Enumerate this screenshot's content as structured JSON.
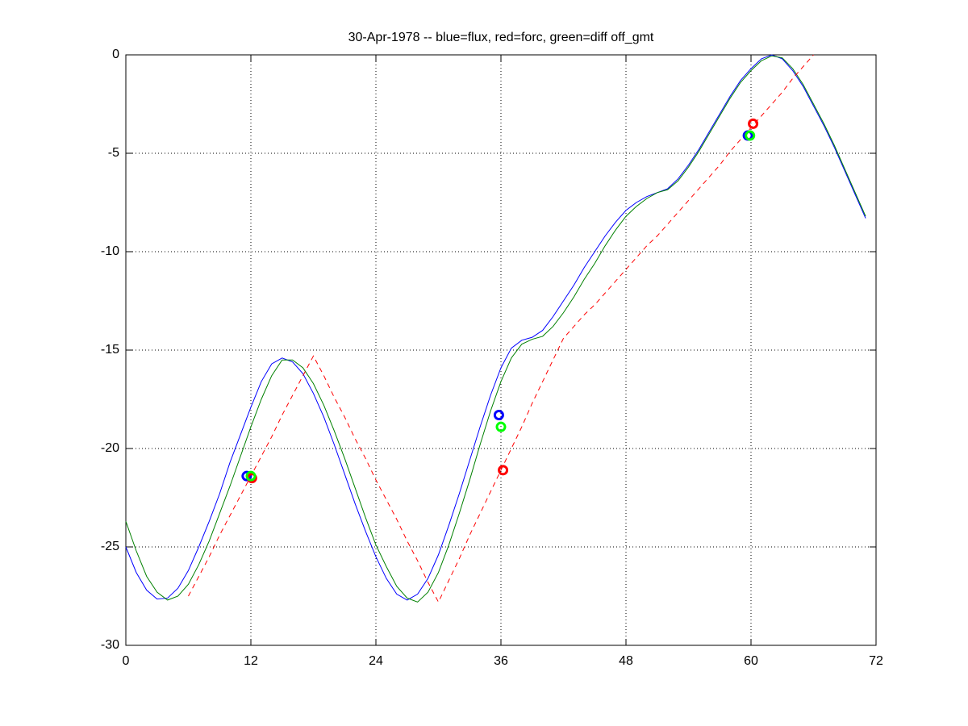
{
  "chart_data": {
    "type": "line",
    "title": "30-Apr-1978 -- blue=flux, red=forc, green=diff off_gmt",
    "x": [
      0,
      1,
      2,
      3,
      4,
      5,
      6,
      7,
      8,
      9,
      10,
      11,
      12,
      13,
      14,
      15,
      16,
      17,
      18,
      19,
      20,
      21,
      22,
      23,
      24,
      25,
      26,
      27,
      28,
      29,
      30,
      31,
      32,
      33,
      34,
      35,
      36,
      37,
      38,
      39,
      40,
      41,
      42,
      43,
      44,
      45,
      46,
      47,
      48,
      49,
      50,
      51,
      52,
      53,
      54,
      55,
      56,
      57,
      58,
      59,
      60,
      61,
      62,
      63,
      64,
      65,
      66,
      67,
      68,
      69,
      70,
      71
    ],
    "xlim": [
      0,
      72
    ],
    "xticks": [
      0,
      12,
      24,
      36,
      48,
      60,
      72
    ],
    "ylim": [
      -30,
      0
    ],
    "yticks": [
      -30,
      -25,
      -20,
      -15,
      -10,
      -5,
      0
    ],
    "grid": true,
    "series": [
      {
        "color": "#0000ff",
        "style": "solid",
        "values": [
          -25.0,
          -26.3,
          -27.2,
          -27.65,
          -27.6,
          -27.1,
          -26.2,
          -25.0,
          -23.7,
          -22.3,
          -20.7,
          -19.3,
          -17.9,
          -16.6,
          -15.7,
          -15.4,
          -15.6,
          -16.2,
          -17.2,
          -18.4,
          -19.8,
          -21.3,
          -22.8,
          -24.2,
          -25.5,
          -26.6,
          -27.4,
          -27.7,
          -27.4,
          -26.6,
          -25.4,
          -23.9,
          -22.3,
          -20.6,
          -18.9,
          -17.3,
          -15.9,
          -14.9,
          -14.5,
          -14.35,
          -14.0,
          -13.3,
          -12.5,
          -11.7,
          -10.8,
          -10.0,
          -9.2,
          -8.5,
          -7.9,
          -7.5,
          -7.2,
          -7.0,
          -6.8,
          -6.3,
          -5.6,
          -4.8,
          -3.9,
          -3.0,
          -2.1,
          -1.3,
          -0.7,
          -0.2,
          0,
          -0.2,
          -0.8,
          -1.6,
          -2.6,
          -3.6,
          -4.7,
          -5.9,
          -7.1,
          -8.3
        ]
      },
      {
        "color": "#008000",
        "style": "solid",
        "values": [
          -23.7,
          -25.2,
          -26.5,
          -27.3,
          -27.7,
          -27.5,
          -26.9,
          -25.9,
          -24.7,
          -23.3,
          -21.9,
          -20.4,
          -18.9,
          -17.5,
          -16.3,
          -15.5,
          -15.5,
          -15.9,
          -16.7,
          -17.8,
          -19.1,
          -20.5,
          -22.0,
          -23.5,
          -24.9,
          -26.0,
          -27.0,
          -27.6,
          -27.8,
          -27.3,
          -26.3,
          -24.9,
          -23.3,
          -21.6,
          -19.8,
          -18.1,
          -16.6,
          -15.4,
          -14.7,
          -14.45,
          -14.3,
          -13.8,
          -13.1,
          -12.3,
          -11.4,
          -10.6,
          -9.7,
          -8.9,
          -8.2,
          -7.7,
          -7.3,
          -7.0,
          -6.85,
          -6.4,
          -5.7,
          -4.9,
          -4.0,
          -3.1,
          -2.2,
          -1.4,
          -0.8,
          -0.3,
          -0.05,
          -0.15,
          -0.7,
          -1.5,
          -2.5,
          -3.5,
          -4.6,
          -5.8,
          -7.0,
          -8.2
        ]
      },
      {
        "color": "#ff0000",
        "style": "dashed",
        "values": [
          null,
          null,
          null,
          null,
          null,
          null,
          -27.5,
          -26.5,
          -25.5,
          -24.4,
          -23.4,
          -22.4,
          -21.4,
          -20.4,
          -19.4,
          -18.3,
          -17.3,
          -16.3,
          -15.3,
          -16.3,
          -17.4,
          -18.4,
          -19.5,
          -20.5,
          -21.6,
          -22.6,
          -23.6,
          -24.7,
          -25.7,
          -26.8,
          -27.8,
          -26.7,
          -25.6,
          -24.4,
          -23.3,
          -22.2,
          -21.1,
          -20.0,
          -18.9,
          -17.7,
          -16.6,
          -15.5,
          -14.4,
          -13.8,
          -13.2,
          -12.7,
          -12.1,
          -11.5,
          -10.9,
          -10.3,
          -9.7,
          -9.2,
          -8.6,
          -8.0,
          -7.4,
          -6.8,
          -6.2,
          -5.6,
          -4.9,
          -4.3,
          -3.7,
          -3.1,
          -2.5,
          -1.9,
          -1.2,
          -0.6,
          0,
          null,
          null,
          null,
          null,
          null
        ]
      },
      {
        "color": "#0000ff",
        "style": "circle",
        "x": [
          11.6,
          35.8,
          59.7
        ],
        "values": [
          -21.4,
          -18.3,
          -4.1
        ]
      },
      {
        "color": "#ff0000",
        "style": "circle",
        "x": [
          12.1,
          36.2,
          60.2
        ],
        "values": [
          -21.5,
          -21.1,
          -3.5
        ]
      },
      {
        "color": "#00ff00",
        "style": "circle",
        "x": [
          12.0,
          36.0,
          59.9
        ],
        "values": [
          -21.4,
          -18.9,
          -4.1
        ]
      }
    ]
  }
}
